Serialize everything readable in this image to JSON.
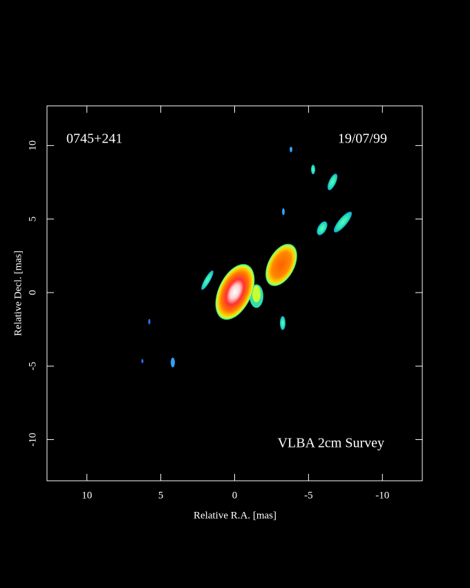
{
  "chart_data": {
    "type": "image",
    "title": "0745+241",
    "date": "19/07/99",
    "annotation": "VLBA 2cm Survey",
    "xlabel": "Relative R.A. [mas]",
    "ylabel": "Relative Decl. [mas]",
    "xlim": [
      12.7,
      -12.7
    ],
    "xticks": [
      10,
      5,
      0,
      -5,
      -10
    ],
    "ylim": [
      -12.8,
      12.7
    ],
    "yticks": [
      10,
      5,
      0,
      -5,
      -10
    ]
  }
}
